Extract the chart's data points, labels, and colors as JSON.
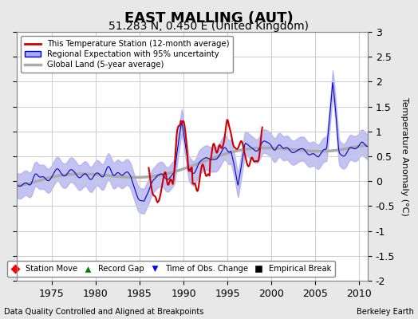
{
  "title": "EAST MALLING (AUT)",
  "subtitle": "51.283 N, 0.450 E (United Kingdom)",
  "ylabel": "Temperature Anomaly (°C)",
  "xlabel_left": "Data Quality Controlled and Aligned at Breakpoints",
  "xlabel_right": "Berkeley Earth",
  "ylim": [
    -2,
    3
  ],
  "xlim": [
    1971,
    2011
  ],
  "xticks": [
    1975,
    1980,
    1985,
    1990,
    1995,
    2000,
    2005,
    2010
  ],
  "yticks": [
    -2,
    -1.5,
    -1,
    -0.5,
    0,
    0.5,
    1,
    1.5,
    2,
    2.5,
    3
  ],
  "bg_color": "#e8e8e8",
  "plot_bg_color": "#ffffff",
  "grid_color": "#cccccc",
  "legend1_labels": [
    "This Temperature Station (12-month average)",
    "Regional Expectation with 95% uncertainty",
    "Global Land (5-year average)"
  ],
  "legend2_labels": [
    "Station Move",
    "Record Gap",
    "Time of Obs. Change",
    "Empirical Break"
  ],
  "red_line_color": "#cc0000",
  "blue_line_color": "#0000cc",
  "blue_fill_color": "#aaaaee",
  "gray_line_color": "#aaaaaa",
  "title_fontsize": 13,
  "subtitle_fontsize": 10,
  "tick_fontsize": 9,
  "label_fontsize": 8
}
